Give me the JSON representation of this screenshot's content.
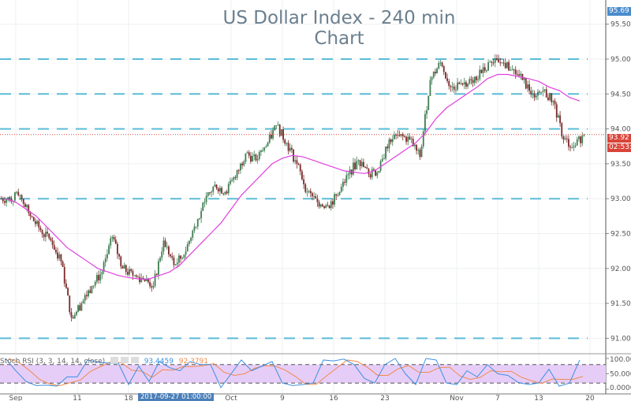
{
  "chart_data": {
    "type": "candlestick",
    "title": "US Dollar Index - 240 min Chart",
    "ylim": [
      90.85,
      95.75
    ],
    "y_ticks": [
      "95.50",
      "95.00",
      "94.50",
      "94.00",
      "93.50",
      "93.00",
      "92.50",
      "92.00",
      "91.50",
      "91.00"
    ],
    "x_ticks": [
      "Sep",
      "11",
      "18",
      "Oct",
      "9",
      "16",
      "23",
      "Nov",
      "7",
      "13",
      "20"
    ],
    "x_tick_dates": [
      "2017-09-01",
      "2017-09-11",
      "2017-09-18",
      "2017-10-02",
      "2017-10-09",
      "2017-10-16",
      "2017-10-23",
      "2017-11-01",
      "2017-11-07",
      "2017-11-13",
      "2017-11-20"
    ],
    "grid": true,
    "daily_closes": [
      [
        "2017-08-31",
        93.0
      ],
      [
        "2017-09-01",
        93.05
      ],
      [
        "2017-09-04",
        92.75
      ],
      [
        "2017-09-05",
        92.55
      ],
      [
        "2017-09-06",
        92.4
      ],
      [
        "2017-09-07",
        92.1
      ],
      [
        "2017-09-08",
        91.3
      ],
      [
        "2017-09-11",
        91.5
      ],
      [
        "2017-09-12",
        91.75
      ],
      [
        "2017-09-13",
        91.95
      ],
      [
        "2017-09-14",
        92.45
      ],
      [
        "2017-09-15",
        92.0
      ],
      [
        "2017-09-18",
        91.9
      ],
      [
        "2017-09-19",
        91.85
      ],
      [
        "2017-09-20",
        91.75
      ],
      [
        "2017-09-21",
        92.4
      ],
      [
        "2017-09-22",
        92.05
      ],
      [
        "2017-09-25",
        92.2
      ],
      [
        "2017-09-26",
        92.6
      ],
      [
        "2017-09-27",
        92.95
      ],
      [
        "2017-09-28",
        93.2
      ],
      [
        "2017-09-29",
        93.1
      ],
      [
        "2017-10-02",
        93.3
      ],
      [
        "2017-10-03",
        93.65
      ],
      [
        "2017-10-04",
        93.55
      ],
      [
        "2017-10-05",
        93.75
      ],
      [
        "2017-10-06",
        94.05
      ],
      [
        "2017-10-09",
        93.8
      ],
      [
        "2017-10-10",
        93.5
      ],
      [
        "2017-10-11",
        93.1
      ],
      [
        "2017-10-12",
        92.95
      ],
      [
        "2017-10-13",
        92.9
      ],
      [
        "2017-10-16",
        93.05
      ],
      [
        "2017-10-17",
        93.35
      ],
      [
        "2017-10-18",
        93.55
      ],
      [
        "2017-10-19",
        93.35
      ],
      [
        "2017-10-20",
        93.4
      ],
      [
        "2017-10-23",
        93.85
      ],
      [
        "2017-10-24",
        93.9
      ],
      [
        "2017-10-25",
        93.85
      ],
      [
        "2017-10-26",
        93.6
      ],
      [
        "2017-10-27",
        94.7
      ],
      [
        "2017-10-30",
        94.95
      ],
      [
        "2017-10-31",
        94.6
      ],
      [
        "2017-11-01",
        94.65
      ],
      [
        "2017-11-02",
        94.7
      ],
      [
        "2017-11-03",
        94.8
      ],
      [
        "2017-11-06",
        94.95
      ],
      [
        "2017-11-07",
        94.95
      ],
      [
        "2017-11-08",
        94.85
      ],
      [
        "2017-11-09",
        94.7
      ],
      [
        "2017-11-10",
        94.5
      ],
      [
        "2017-11-13",
        94.55
      ],
      [
        "2017-11-14",
        94.4
      ],
      [
        "2017-11-15",
        93.85
      ],
      [
        "2017-11-16",
        93.75
      ],
      [
        "2017-11-17",
        93.92
      ]
    ],
    "moving_average": [
      93.0,
      92.95,
      92.85,
      92.75,
      92.6,
      92.45,
      92.3,
      92.2,
      92.1,
      92.0,
      91.95,
      91.9,
      91.87,
      91.85,
      91.85,
      91.9,
      91.95,
      92.05,
      92.2,
      92.35,
      92.5,
      92.65,
      92.85,
      93.05,
      93.2,
      93.35,
      93.5,
      93.58,
      93.62,
      93.6,
      93.55,
      93.5,
      93.45,
      93.4,
      93.38,
      93.36,
      93.4,
      93.5,
      93.6,
      93.7,
      93.8,
      93.95,
      94.15,
      94.3,
      94.4,
      94.5,
      94.6,
      94.72,
      94.78,
      94.78,
      94.75,
      94.72,
      94.68,
      94.6,
      94.55,
      94.45,
      94.4
    ],
    "horizontal_levels": [
      95.0,
      94.5,
      94.0,
      93.0,
      91.0
    ],
    "last_price": "93.92",
    "high_label": "95.69",
    "countdown": "02:53:57",
    "colors": {
      "up": "#3f7d52",
      "down": "#7b2a2a",
      "ma": "#e040e0",
      "levels": "#5bbcd6",
      "last": "#d9443a",
      "high_tag": "#4a8ccc",
      "band": "#e6cdf8",
      "k": "#3d8fe0",
      "d": "#f08a4b"
    },
    "indicator": {
      "label": "Stoch RSI (3, 3, 14, 14, close)",
      "k_value": "93.4459",
      "d_value": "92.3791",
      "y_ticks": [
        "100.0000",
        "50.0000",
        "0.0000"
      ],
      "levels": [
        80,
        20
      ],
      "k": [
        100,
        60,
        25,
        12,
        13,
        10,
        40,
        40,
        95,
        88,
        85,
        85,
        15,
        75,
        25,
        90,
        70,
        60,
        90,
        80,
        80,
        5,
        50,
        95,
        60,
        75,
        90,
        20,
        12,
        15,
        20,
        95,
        92,
        98,
        80,
        35,
        20,
        80,
        100,
        50,
        15,
        100,
        95,
        20,
        15,
        60,
        40,
        80,
        50,
        45,
        22,
        15,
        20,
        65,
        10,
        20,
        95
      ]
    },
    "crosshair_date": "2017-09-27 01:00:00"
  }
}
